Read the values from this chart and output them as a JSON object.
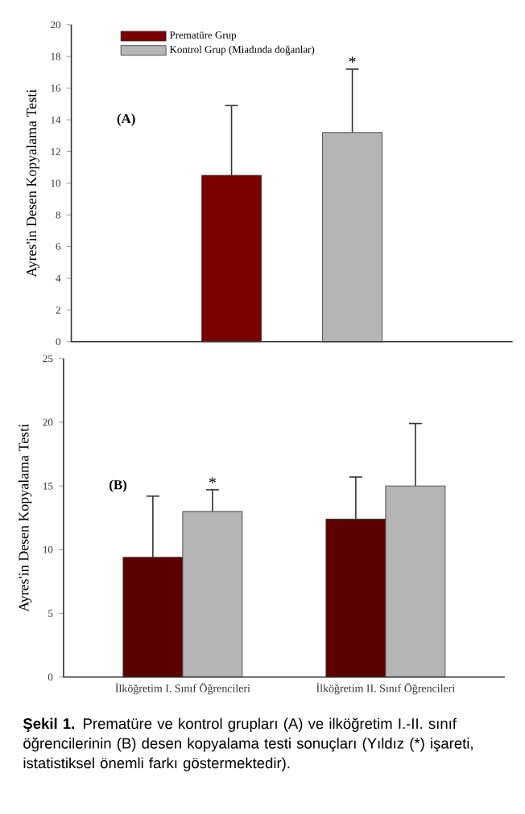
{
  "chart_data": [
    {
      "type": "bar",
      "ylabel": "Ayres'in Desen Kopyalama Testi",
      "categories": [
        null
      ],
      "series": [
        {
          "name": "Prematüre Grup",
          "color": "#7b0000",
          "values": [
            10.5
          ],
          "errors": [
            [
              10.5,
              14.9
            ]
          ]
        },
        {
          "name": "Kontrol Grup (Miadında doğanlar)",
          "color": "#b5b5b5",
          "values": [
            13.2
          ],
          "errors": [
            [
              13.2,
              17.2
            ]
          ]
        }
      ],
      "ylim": [
        0,
        20
      ],
      "yticks": [
        0,
        2,
        4,
        6,
        8,
        10,
        12,
        14,
        16,
        18,
        20
      ],
      "legend": "top left",
      "annotations": [
        "(A)",
        {
          "text": "*",
          "y": 17.2
        }
      ]
    },
    {
      "type": "bar",
      "ylabel": "Ayres'in Desen Kopyalama Testi",
      "categories": [
        "İlköğretim I. Sınıf Öğrencileri",
        "İlköğretim II. Sınıf Öğrencileri"
      ],
      "series": [
        {
          "color": "#5c0000",
          "values": [
            9.4,
            12.4
          ],
          "errors": [
            [
              9.4,
              14.2
            ],
            [
              12.4,
              15.7
            ]
          ]
        },
        {
          "color": "#b5b5b5",
          "values": [
            13.0,
            15.0
          ],
          "errors": [
            [
              13.0,
              14.7
            ],
            [
              15.0,
              19.9
            ]
          ]
        }
      ],
      "ylim": [
        0,
        25
      ],
      "yticks": [
        0,
        5,
        10,
        15,
        20,
        25
      ],
      "annotations": [
        "(B)",
        {
          "text": "*",
          "y": 14.7
        },
        "**Şekil 1.** Prematüre ve kontrol grupları (A) ve ilköğretim I.-II. sınıf öğrencilerinin (B) desen kopyalama testi sonuçları (Yıldız (*) işareti, istatistiksel önemli farkı göstermektedir)."
      ]
    }
  ]
}
